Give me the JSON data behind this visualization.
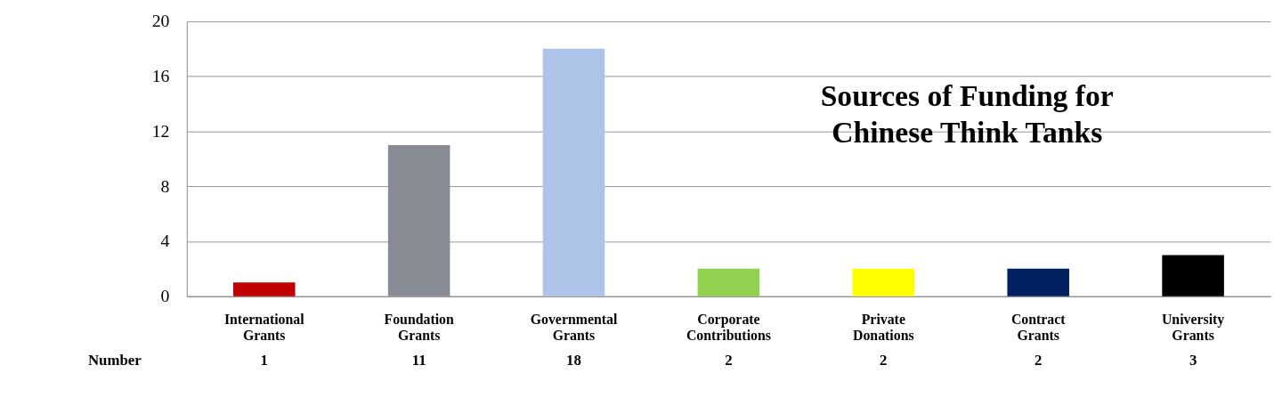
{
  "chart_data": {
    "type": "bar",
    "title": "Sources of Funding for Chinese Think Tanks",
    "categories": [
      "International Grants",
      "Foundation Grants",
      "Governmental Grants",
      "Corporate Contributions",
      "Private Donations",
      "Contract Grants",
      "University Grants"
    ],
    "series": [
      {
        "name": "Number",
        "values": [
          1,
          11,
          18,
          2,
          2,
          2,
          3
        ]
      }
    ],
    "colors": [
      "#c00000",
      "#868b94",
      "#aec3e8",
      "#92d050",
      "#ffff00",
      "#002060",
      "#000000"
    ],
    "ylim": [
      0,
      20
    ],
    "yticks": [
      0,
      4,
      8,
      12,
      16,
      20
    ],
    "grid": "y",
    "data_labels": true,
    "legend": "bottom left"
  }
}
